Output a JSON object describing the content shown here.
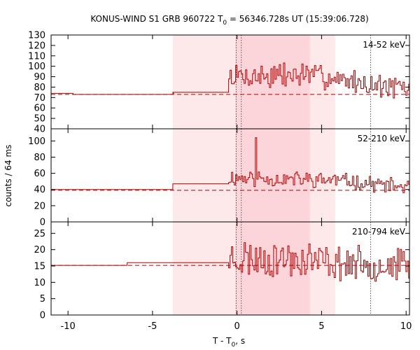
{
  "chart_data": {
    "type": "line",
    "title": "KONUS-WIND S1 GRB 960722 T",
    "title_sub": "0",
    "title_rest": " = 56346.728s UT (15:39:06.728)",
    "xlabel": "T - T",
    "xlabel_sub": "0",
    "xlabel_rest": ", s",
    "ylabel": "counts / 64 ms",
    "xlim": [
      -11,
      10.2
    ],
    "x_ticks": [
      -10,
      -5,
      0,
      5,
      10
    ],
    "x_tick_labels": [
      "-10",
      "-5",
      "0",
      "5",
      "10"
    ],
    "colors": {
      "series": "#b00000",
      "band_light": "#fde8ea",
      "band_dark": "#fbd5da",
      "frame": "#000000"
    },
    "shaded_regions": [
      {
        "range": [
          -3.8,
          5.8
        ],
        "shade": "light"
      },
      {
        "range": [
          -0.1,
          4.3
        ],
        "shade": "dark"
      }
    ],
    "vertical_dotted_lines": [
      -0.05,
      0.25,
      7.9
    ],
    "panels": [
      {
        "band": "14-52 keV",
        "ylim": [
          40,
          130
        ],
        "y_ticks": [
          40,
          50,
          60,
          70,
          80,
          90,
          100,
          110,
          120,
          130
        ],
        "background": 73,
        "steps": [
          {
            "x": -11,
            "y": 74
          },
          {
            "x": -9.7,
            "y": 73
          },
          {
            "x": -3.8,
            "y": 74
          },
          {
            "x": -3.75,
            "y": 73
          },
          {
            "x": -3.8,
            "y": 75
          },
          {
            "x": -0.5,
            "y": 80
          }
        ],
        "noise_seed": 7,
        "burst_level": [
          {
            "x": -0.5,
            "mean": 90
          },
          {
            "x": 4.3,
            "mean": 92
          },
          {
            "x": 5.8,
            "mean": 88
          },
          {
            "x": 10.2,
            "mean": 77
          }
        ],
        "noise_amp": 11
      },
      {
        "band": "52-210 keV",
        "ylim": [
          0,
          115
        ],
        "y_ticks": [
          0,
          20,
          40,
          60,
          80,
          100
        ],
        "background": 39,
        "steps": [
          {
            "x": -11,
            "y": 40
          },
          {
            "x": -6.5,
            "y": 40
          },
          {
            "x": -3.8,
            "y": 47
          }
        ],
        "noise_seed": 11,
        "burst_level": [
          {
            "x": -0.5,
            "mean": 55
          },
          {
            "x": 4.3,
            "mean": 52
          },
          {
            "x": 5.8,
            "mean": 52
          },
          {
            "x": 10.2,
            "mean": 42
          }
        ],
        "noise_amp": 9,
        "spike": {
          "x": 1.1,
          "y": 104
        }
      },
      {
        "band": "210-794 keV",
        "ylim": [
          0,
          28.5
        ],
        "y_ticks": [
          0,
          5,
          10,
          15,
          20,
          25
        ],
        "y_tick_labels": [
          "0",
          "5",
          "10",
          "15",
          "20",
          "25"
        ],
        "background": 15.2,
        "steps": [
          {
            "x": -11,
            "y": 15.2
          },
          {
            "x": -6.5,
            "y": 16
          },
          {
            "x": -0.5,
            "y": 16
          }
        ],
        "noise_seed": 23,
        "burst_level": [
          {
            "x": -0.5,
            "mean": 17.5
          },
          {
            "x": 4.3,
            "mean": 17
          },
          {
            "x": 5.8,
            "mean": 16
          },
          {
            "x": 10.2,
            "mean": 15
          }
        ],
        "noise_amp": 5
      }
    ]
  }
}
